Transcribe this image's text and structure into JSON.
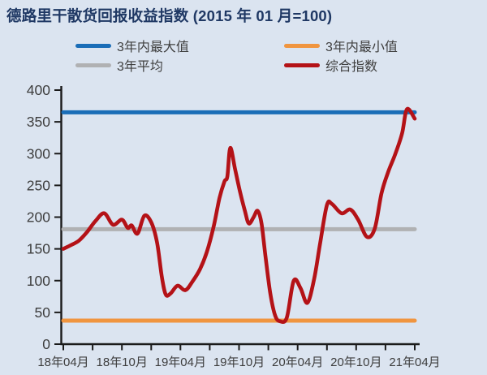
{
  "title": "德路里干散货回报收益指数 (2015 年 01 月=100)",
  "colors": {
    "background": "#dbe4f0",
    "title": "#1f3864",
    "axis": "#1a1a1a",
    "tick_label": "#3d3d3d",
    "max_line": "#1a6db7",
    "min_line": "#f0953f",
    "avg_line": "#b0b1b3",
    "index_line": "#b41217"
  },
  "legend": {
    "items": [
      {
        "label": "3年内最大值",
        "color_key": "max_line"
      },
      {
        "label": "3年内最小值",
        "color_key": "min_line"
      },
      {
        "label": "3年平均",
        "color_key": "avg_line"
      },
      {
        "label": "综合指数",
        "color_key": "index_line"
      }
    ]
  },
  "chart_data": {
    "type": "line",
    "title": "德路里干散货回报收益指数 (2015 年 01 月=100)",
    "xlabel": "",
    "ylabel": "",
    "ylim": [
      0,
      400
    ],
    "y_tick_step": 50,
    "y_tick_labels": [
      "0",
      "50",
      "100",
      "150",
      "200",
      "250",
      "300",
      "350",
      "400"
    ],
    "x_tick_labels": [
      "18年04月",
      "18年10月",
      "19年04月",
      "19年10月",
      "20年04月",
      "20年10月",
      "21年04月"
    ],
    "x_label_every_months": 6,
    "minor_tick_every_months": 3,
    "x_range_months": 36,
    "grid": false,
    "legend_position": "top",
    "series": [
      {
        "name": "3年内最大值",
        "type": "constant",
        "value": 365,
        "color_key": "max_line"
      },
      {
        "name": "3年内最小值",
        "type": "constant",
        "value": 37,
        "color_key": "min_line"
      },
      {
        "name": "3年平均",
        "type": "constant",
        "value": 181,
        "color_key": "avg_line"
      },
      {
        "name": "综合指数",
        "type": "points",
        "color_key": "index_line",
        "points": [
          [
            0,
            150
          ],
          [
            0.8,
            156
          ],
          [
            1.6,
            163
          ],
          [
            2.4,
            176
          ],
          [
            3.3,
            194
          ],
          [
            4.2,
            206
          ],
          [
            5.1,
            188
          ],
          [
            6.0,
            196
          ],
          [
            6.6,
            183
          ],
          [
            7.0,
            187
          ],
          [
            7.6,
            174
          ],
          [
            8.3,
            202
          ],
          [
            9.0,
            192
          ],
          [
            9.6,
            160
          ],
          [
            10.1,
            105
          ],
          [
            10.5,
            78
          ],
          [
            11.0,
            80
          ],
          [
            11.7,
            92
          ],
          [
            12.5,
            85
          ],
          [
            13.2,
            98
          ],
          [
            14.0,
            118
          ],
          [
            14.7,
            145
          ],
          [
            15.4,
            185
          ],
          [
            16.0,
            230
          ],
          [
            16.5,
            256
          ],
          [
            16.8,
            264
          ],
          [
            17.1,
            309
          ],
          [
            17.6,
            275
          ],
          [
            18.1,
            240
          ],
          [
            18.6,
            210
          ],
          [
            19.0,
            190
          ],
          [
            19.5,
            200
          ],
          [
            19.9,
            210
          ],
          [
            20.3,
            190
          ],
          [
            20.7,
            139
          ],
          [
            21.2,
            80
          ],
          [
            21.7,
            45
          ],
          [
            22.2,
            36
          ],
          [
            22.9,
            42
          ],
          [
            23.6,
            100
          ],
          [
            24.3,
            88
          ],
          [
            25.0,
            65
          ],
          [
            25.7,
            103
          ],
          [
            26.3,
            158
          ],
          [
            27.0,
            219
          ],
          [
            27.5,
            221
          ],
          [
            28.5,
            206
          ],
          [
            29.4,
            212
          ],
          [
            30.2,
            196
          ],
          [
            31.1,
            169
          ],
          [
            31.9,
            182
          ],
          [
            32.6,
            238
          ],
          [
            33.3,
            272
          ],
          [
            34.0,
            299
          ],
          [
            34.7,
            332
          ],
          [
            35.2,
            370
          ],
          [
            36,
            355
          ]
        ]
      }
    ]
  }
}
